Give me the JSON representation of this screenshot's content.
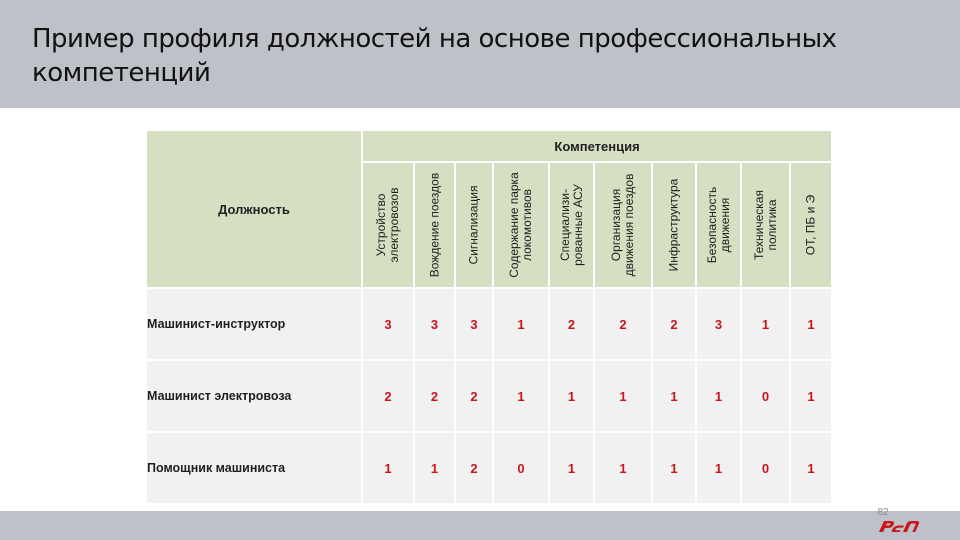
{
  "slide": {
    "title": "Пример профиля должностей на основе профессиональных компетенций",
    "page_number": "82"
  },
  "table": {
    "position_header": "Должность",
    "competence_header": "Компетенция",
    "competencies": [
      "Устройство электровозов",
      "Вождение поездов",
      "Сигнализация",
      "Содержание парка локомотивов",
      "Специализи-рованные АСУ",
      "Организация движения поездов",
      "Инфраструктура",
      "Безопасность движения",
      "Техническая политика",
      "ОТ, ПБ и Э"
    ],
    "rows": [
      {
        "position": "Машинист-инструктор",
        "values": [
          "3",
          "3",
          "3",
          "1",
          "2",
          "2",
          "2",
          "3",
          "1",
          "1"
        ]
      },
      {
        "position": "Машинист электровоза",
        "values": [
          "2",
          "2",
          "2",
          "1",
          "1",
          "1",
          "1",
          "1",
          "0",
          "1"
        ]
      },
      {
        "position": "Помощник машиниста",
        "values": [
          "1",
          "1",
          "2",
          "0",
          "1",
          "1",
          "1",
          "1",
          "0",
          "1"
        ]
      }
    ]
  },
  "logo": {
    "icon": "rzd-logo-icon",
    "color": "#c8161d"
  },
  "colors": {
    "header_fill": "#d6dfc1",
    "cell_fill": "#f1f1f1",
    "value_text": "#c8161d",
    "band_fill": "#bfc1c9"
  }
}
